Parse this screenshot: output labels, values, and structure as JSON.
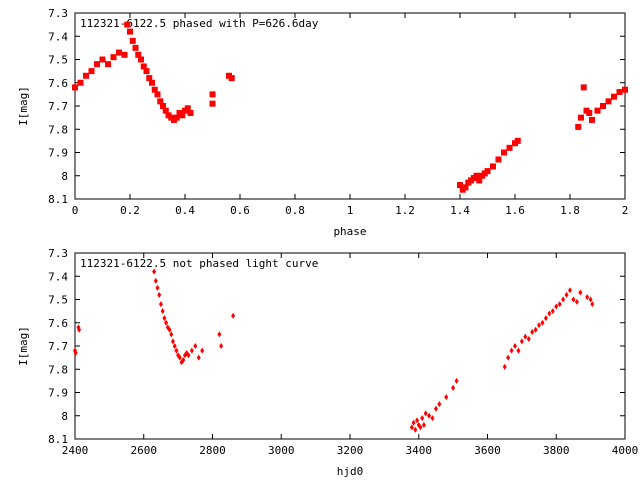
{
  "chart_data": [
    {
      "type": "scatter",
      "title": "112321-6122.5 phased with P=626.6day",
      "xlabel": "phase",
      "ylabel": "I[mag]",
      "xlim": [
        0,
        2
      ],
      "ylim": [
        7.3,
        8.1
      ],
      "y_inverted": true,
      "x_ticks": [
        "0",
        "0.2",
        "0.4",
        "0.6",
        "0.8",
        "1",
        "1.2",
        "1.4",
        "1.6",
        "1.8",
        "2"
      ],
      "y_ticks": [
        "7.3",
        "7.4",
        "7.5",
        "7.6",
        "7.7",
        "7.8",
        "7.9",
        "8",
        "8.1"
      ],
      "marker_color": "#ff0000",
      "grid": false,
      "x": [
        0.0,
        0.02,
        0.04,
        0.06,
        0.08,
        0.1,
        0.12,
        0.14,
        0.16,
        0.18,
        0.19,
        0.2,
        0.21,
        0.22,
        0.23,
        0.24,
        0.25,
        0.26,
        0.27,
        0.28,
        0.29,
        0.3,
        0.31,
        0.32,
        0.33,
        0.34,
        0.35,
        0.36,
        0.37,
        0.38,
        0.39,
        0.4,
        0.41,
        0.42,
        0.5,
        0.5,
        0.56,
        0.57,
        1.4,
        1.41,
        1.42,
        1.43,
        1.44,
        1.45,
        1.46,
        1.47,
        1.48,
        1.49,
        1.5,
        1.52,
        1.54,
        1.56,
        1.58,
        1.6,
        1.61,
        1.83,
        1.84,
        1.85,
        1.86,
        1.87,
        1.88,
        1.9,
        1.92,
        1.94,
        1.96,
        1.98,
        2.0
      ],
      "y": [
        7.62,
        7.6,
        7.57,
        7.55,
        7.52,
        7.5,
        7.52,
        7.49,
        7.47,
        7.48,
        7.35,
        7.38,
        7.42,
        7.45,
        7.48,
        7.5,
        7.53,
        7.55,
        7.58,
        7.6,
        7.63,
        7.65,
        7.68,
        7.7,
        7.72,
        7.74,
        7.75,
        7.76,
        7.75,
        7.73,
        7.74,
        7.72,
        7.71,
        7.73,
        7.65,
        7.69,
        7.57,
        7.58,
        8.04,
        8.06,
        8.05,
        8.03,
        8.02,
        8.01,
        8.0,
        8.02,
        8.0,
        7.99,
        7.98,
        7.96,
        7.93,
        7.9,
        7.88,
        7.86,
        7.85,
        7.79,
        7.75,
        7.62,
        7.72,
        7.73,
        7.76,
        7.72,
        7.7,
        7.68,
        7.66,
        7.64,
        7.63
      ]
    },
    {
      "type": "scatter",
      "title": "112321-6122.5 not phased light curve",
      "xlabel": "hjd0",
      "ylabel": "I[mag]",
      "xlim": [
        2400,
        4000
      ],
      "ylim": [
        7.3,
        8.1
      ],
      "y_inverted": true,
      "x_ticks": [
        "2400",
        "2600",
        "2800",
        "3000",
        "3200",
        "3400",
        "3600",
        "3800",
        "4000"
      ],
      "y_ticks": [
        "7.3",
        "7.4",
        "7.5",
        "7.6",
        "7.7",
        "7.8",
        "7.9",
        "8",
        "8.1"
      ],
      "marker_color": "#ff0000",
      "grid": false,
      "x": [
        2400,
        2402,
        2410,
        2412,
        2630,
        2635,
        2640,
        2645,
        2650,
        2655,
        2660,
        2665,
        2670,
        2675,
        2680,
        2685,
        2690,
        2695,
        2700,
        2705,
        2710,
        2715,
        2720,
        2725,
        2730,
        2740,
        2750,
        2760,
        2770,
        2820,
        2825,
        2860,
        3380,
        3385,
        3390,
        3395,
        3400,
        3405,
        3410,
        3415,
        3420,
        3430,
        3440,
        3450,
        3460,
        3480,
        3500,
        3510,
        3650,
        3660,
        3670,
        3680,
        3690,
        3700,
        3710,
        3720,
        3730,
        3740,
        3750,
        3760,
        3770,
        3780,
        3790,
        3800,
        3810,
        3820,
        3830,
        3840,
        3850,
        3860,
        3870,
        3890,
        3900,
        3905
      ],
      "y": [
        7.72,
        7.73,
        7.62,
        7.63,
        7.38,
        7.42,
        7.45,
        7.48,
        7.52,
        7.55,
        7.58,
        7.6,
        7.62,
        7.63,
        7.65,
        7.68,
        7.7,
        7.72,
        7.74,
        7.75,
        7.77,
        7.76,
        7.74,
        7.73,
        7.74,
        7.72,
        7.7,
        7.75,
        7.72,
        7.65,
        7.7,
        7.57,
        8.05,
        8.03,
        8.06,
        8.02,
        8.04,
        8.05,
        8.01,
        8.04,
        7.99,
        8.0,
        8.01,
        7.97,
        7.95,
        7.92,
        7.88,
        7.85,
        7.79,
        7.75,
        7.72,
        7.7,
        7.72,
        7.68,
        7.66,
        7.67,
        7.64,
        7.63,
        7.61,
        7.6,
        7.58,
        7.56,
        7.55,
        7.53,
        7.52,
        7.5,
        7.48,
        7.46,
        7.5,
        7.51,
        7.47,
        7.49,
        7.5,
        7.52
      ]
    }
  ]
}
